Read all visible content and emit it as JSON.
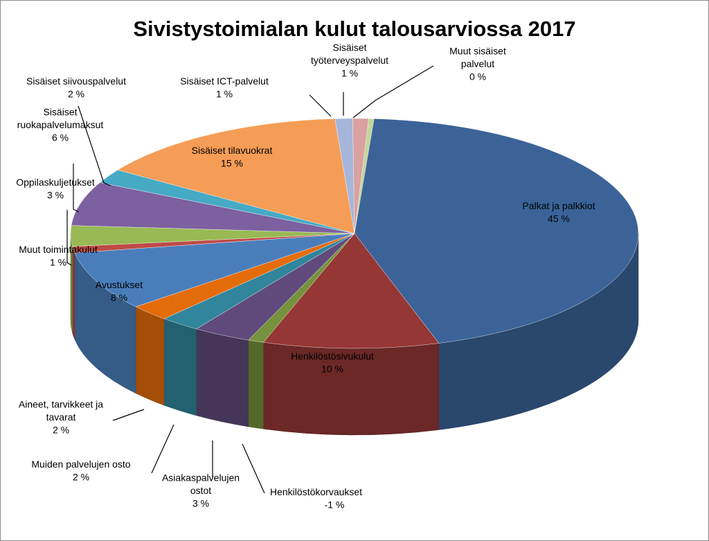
{
  "chart_data": {
    "type": "pie",
    "title": "Sivistystoimialan kulut talousarviossa 2017",
    "unit": "%",
    "legend": "none (data labels)",
    "slices": [
      {
        "label": "Palkat ja palkkiot",
        "label_lines": [
          "Palkat ja palkkiot"
        ],
        "value": 45,
        "value_label": "45 %",
        "color": "#3b6398"
      },
      {
        "label": "Henkilöstösivukulut",
        "label_lines": [
          "Henkilöstösivukulut"
        ],
        "value": 10,
        "value_label": "10 %",
        "color": "#953735"
      },
      {
        "label": "Henkilöstökorvaukset",
        "label_lines": [
          "Henkilöstökorvaukset"
        ],
        "value": -1,
        "value_label": "-1 %",
        "color": "#76923c"
      },
      {
        "label": "Asiakaspalvelujen ostot",
        "label_lines": [
          "Asiakaspalvelujen",
          "ostot"
        ],
        "value": 3,
        "value_label": "3 %",
        "color": "#604a7b"
      },
      {
        "label": "Muiden palvelujen osto",
        "label_lines": [
          "Muiden palvelujen osto"
        ],
        "value": 2,
        "value_label": "2 %",
        "color": "#31859c"
      },
      {
        "label": "Aineet, tarvikkeet ja tavarat",
        "label_lines": [
          "Aineet, tarvikkeet ja",
          "tavarat"
        ],
        "value": 2,
        "value_label": "2 %",
        "color": "#e46c0a"
      },
      {
        "label": "Avustukset",
        "label_lines": [
          "Avustukset"
        ],
        "value": 8,
        "value_label": "8 %",
        "color": "#4a7ebb"
      },
      {
        "label": "Muut toimintakulut",
        "label_lines": [
          "Muut toimintakulut"
        ],
        "value": 1,
        "value_label": "1 %",
        "color": "#be4b48"
      },
      {
        "label": "Oppilaskuljetukset",
        "label_lines": [
          "Oppilaskuljetukset"
        ],
        "value": 3,
        "value_label": "3 %",
        "color": "#98b954"
      },
      {
        "label": "Sisäiset ruokapalvelumaksut",
        "label_lines": [
          "Sisäiset",
          "ruokapalvelumaksut"
        ],
        "value": 6,
        "value_label": "6 %",
        "color": "#7d60a0"
      },
      {
        "label": "Sisäiset siivouspalvelut",
        "label_lines": [
          "Sisäiset siivouspalvelut"
        ],
        "value": 2,
        "value_label": "2 %",
        "color": "#46aac5"
      },
      {
        "label": "Sisäiset tilavuokrat",
        "label_lines": [
          "Sisäiset tilavuokrat"
        ],
        "value": 15,
        "value_label": "15 %",
        "color": "#f59d56"
      },
      {
        "label": "Sisäiset ICT-palvelut",
        "label_lines": [
          "Sisäiset ICT-palvelut"
        ],
        "value": 1,
        "value_label": "1 %",
        "color": "#a5b6da"
      },
      {
        "label": "Sisäiset työterveyspalvelut",
        "label_lines": [
          "Sisäiset",
          "työterveyspalvelut"
        ],
        "value": 1,
        "value_label": "1 %",
        "color": "#d9a1a0"
      },
      {
        "label": "Muut sisäiset palvelut",
        "label_lines": [
          "Muut sisäiset",
          "palvelut"
        ],
        "value": 0,
        "value_label": "0 %",
        "color": "#c3d69b"
      }
    ]
  }
}
